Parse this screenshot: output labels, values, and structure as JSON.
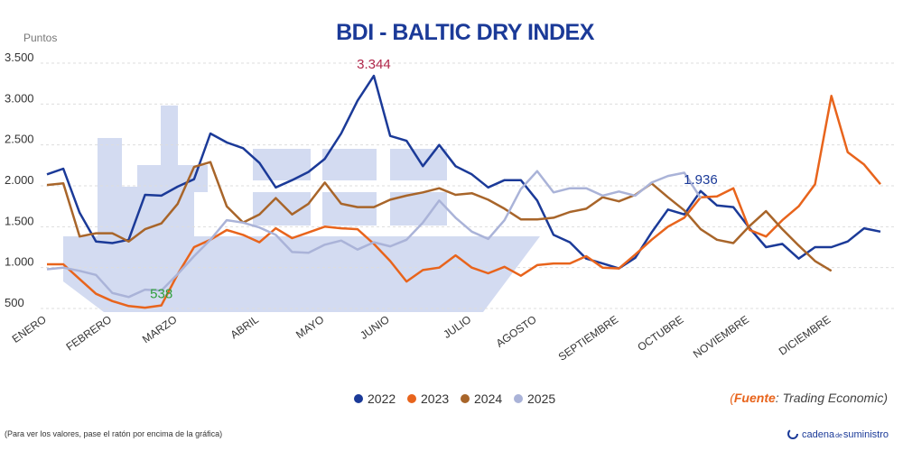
{
  "chart_data": {
    "type": "line",
    "title": "BDI - BALTIC DRY INDEX",
    "ylabel": "Puntos",
    "categories": [
      "ENERO",
      null,
      null,
      null,
      "FEBRERO",
      null,
      null,
      null,
      "MARZO",
      null,
      null,
      null,
      null,
      "ABRIL",
      null,
      null,
      null,
      "MAYO",
      null,
      null,
      null,
      "JUNIO",
      null,
      null,
      null,
      null,
      "JULIO",
      null,
      null,
      null,
      "AGOSTO",
      null,
      null,
      null,
      null,
      "SEPTIEMBRE",
      null,
      null,
      null,
      "OCTUBRE",
      null,
      null,
      null,
      "NOVIEMBRE",
      null,
      null,
      null,
      null,
      "DICIEMBRE",
      null,
      null,
      null
    ],
    "ylim": [
      500,
      3500
    ],
    "yticks": [
      500,
      {
        "value": 1000,
        "label": "1.000"
      },
      {
        "value": 1500,
        "label": "1.500"
      },
      {
        "value": 2000,
        "label": "2.000"
      },
      {
        "value": 2500,
        "label": "2.500"
      },
      {
        "value": 3000,
        "label": "3.000"
      },
      {
        "value": 3500,
        "label": "3.500"
      }
    ],
    "grid": true,
    "legend": "bottom",
    "series": [
      {
        "name": "2022",
        "color": "#1b3a98",
        "values": [
          2140,
          2210,
          1670,
          1320,
          1300,
          1340,
          1890,
          1880,
          1990,
          2080,
          2640,
          2530,
          2460,
          2280,
          1980,
          2070,
          2170,
          2330,
          2640,
          3040,
          3344,
          2610,
          2550,
          2240,
          2500,
          2240,
          2140,
          1980,
          2070,
          2070,
          1820,
          1400,
          1310,
          1110,
          1050,
          990,
          1120,
          1430,
          1710,
          1650,
          1936,
          1760,
          1740,
          1480,
          1250,
          1290,
          1110,
          1250,
          1250,
          1320,
          1480,
          1440
        ],
        "value_labels": [
          null,
          null,
          null,
          null,
          null,
          null,
          null,
          null,
          null,
          null,
          null,
          null,
          null,
          null,
          null,
          null,
          null,
          null,
          null,
          null,
          "3.344",
          null,
          null,
          null,
          null,
          null,
          null,
          null,
          null,
          null,
          null,
          null,
          null,
          null,
          null,
          null,
          null,
          null,
          null,
          null,
          "1.936",
          null,
          null,
          null,
          null,
          null,
          null,
          null,
          null,
          null,
          null,
          null
        ],
        "label_colors": [
          "#b0274a",
          "#1b3a98"
        ]
      },
      {
        "name": "2023",
        "color": "#e8641c",
        "values": [
          1040,
          1040,
          860,
          680,
          590,
          530,
          510,
          538,
          920,
          1250,
          1340,
          1460,
          1400,
          1310,
          1480,
          1360,
          1430,
          1500,
          1480,
          1470,
          1290,
          1080,
          830,
          970,
          1000,
          1150,
          1000,
          930,
          1010,
          900,
          1030,
          1050,
          1050,
          1140,
          1000,
          990,
          1160,
          1340,
          1500,
          1610,
          1860,
          1870,
          1970,
          1460,
          1380,
          1580,
          1750,
          2020,
          3100,
          2410,
          2260,
          2020
        ],
        "value_labels": [
          null,
          null,
          null,
          null,
          null,
          null,
          null,
          "538",
          null,
          null,
          null,
          null,
          null,
          null,
          null,
          null,
          null,
          null,
          null,
          null,
          null,
          null,
          null,
          null,
          null,
          null,
          null,
          null,
          null,
          null,
          null,
          null,
          null,
          null,
          null,
          null,
          null,
          null,
          null,
          null,
          null,
          null,
          null,
          null,
          null,
          null,
          null,
          null,
          null,
          null,
          null,
          null
        ],
        "label_colors": [
          "#2e9e3a"
        ]
      },
      {
        "name": "2024",
        "color": "#a8652a",
        "values": [
          2010,
          2030,
          1380,
          1420,
          1420,
          1320,
          1470,
          1540,
          1780,
          2230,
          2290,
          1750,
          1550,
          1650,
          1850,
          1650,
          1780,
          2040,
          1780,
          1740,
          1740,
          1830,
          1880,
          1920,
          1970,
          1890,
          1910,
          1830,
          1720,
          1590,
          1590,
          1610,
          1680,
          1720,
          1860,
          1810,
          1890,
          2030,
          1860,
          1700,
          1470,
          1340,
          1300,
          1510,
          1690,
          1470,
          1270,
          1080,
          960,
          null,
          null,
          null
        ]
      },
      {
        "name": "2025",
        "color": "#aab3d8",
        "values": [
          980,
          1000,
          960,
          910,
          690,
          640,
          730,
          720,
          920,
          1140,
          1340,
          1580,
          1550,
          1490,
          1400,
          1190,
          1180,
          1280,
          1330,
          1220,
          1310,
          1260,
          1340,
          1550,
          1820,
          1610,
          1440,
          1350,
          1580,
          1960,
          2180,
          1920,
          1970,
          1970,
          1880,
          1930,
          1880,
          2040,
          2120,
          2160,
          1850,
          null,
          null,
          null,
          null,
          null,
          null,
          null,
          null,
          null,
          null,
          null
        ]
      }
    ],
    "source": [
      "(",
      "Fuente",
      ": Trading Economic)"
    ],
    "note": "(Para ver los valores, pase el ratón por encima de la gráfica)",
    "logo": [
      "cadena",
      "de",
      "suministro"
    ]
  }
}
